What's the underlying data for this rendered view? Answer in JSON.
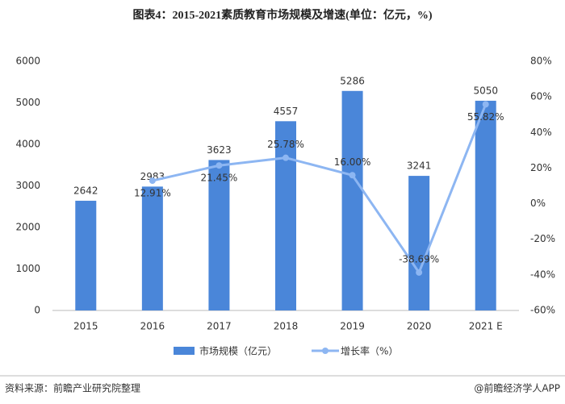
{
  "chart_data": {
    "type": "bar-line",
    "title": "图表4：2015-2021素质教育市场规模及增速(单位：亿元，%)",
    "categories": [
      "2015",
      "2016",
      "2017",
      "2018",
      "2019",
      "2020",
      "2021 E"
    ],
    "series": [
      {
        "name": "市场规模（亿元）",
        "type": "bar",
        "color": "#4a86d9",
        "values": [
          2642,
          2983,
          3623,
          4557,
          5286,
          3241,
          5050
        ]
      },
      {
        "name": "增长率（%）",
        "type": "line",
        "axis": "y2",
        "color": "#8db6f2",
        "values": [
          null,
          12.91,
          21.45,
          25.78,
          16.0,
          -38.69,
          55.82
        ],
        "value_labels": [
          null,
          "12.91%",
          "21.45%",
          "25.78%",
          "16.00%",
          "-38.69%",
          "55.82%"
        ]
      }
    ],
    "ylim": [
      0,
      6000
    ],
    "yticks": [
      0,
      1000,
      2000,
      3000,
      4000,
      5000,
      6000
    ],
    "y2lim": [
      -60,
      80
    ],
    "y2ticks": [
      {
        "value": -60,
        "label": "-60%"
      },
      {
        "value": -40,
        "label": "-40%"
      },
      {
        "value": -20,
        "label": "-20%"
      },
      {
        "value": 0,
        "label": "0%"
      },
      {
        "value": 20,
        "label": "20%"
      },
      {
        "value": 40,
        "label": "40%"
      },
      {
        "value": 60,
        "label": "60%"
      },
      {
        "value": 80,
        "label": "80%"
      }
    ],
    "source": "资料来源：前瞻产业研究院整理",
    "brand": "@前瞻经济学人APP"
  }
}
